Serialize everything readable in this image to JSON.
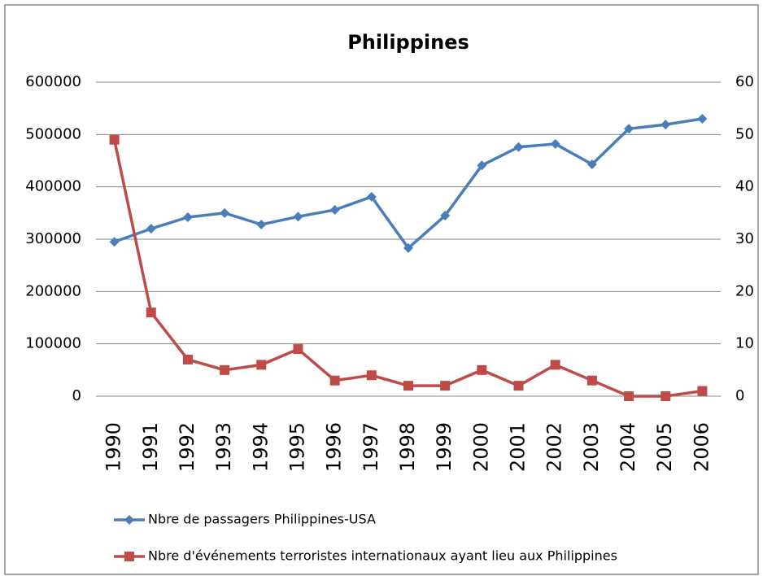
{
  "chart_data": {
    "type": "line",
    "title": "Philippines",
    "categories": [
      "1990",
      "1991",
      "1992",
      "1993",
      "1994",
      "1995",
      "1996",
      "1997",
      "1998",
      "1999",
      "2000",
      "2001",
      "2002",
      "2003",
      "2004",
      "2005",
      "2006"
    ],
    "series": [
      {
        "name": "Nbre de passagers Philippines-USA",
        "color": "#4a7ebb",
        "marker": "diamond",
        "axis": "y",
        "values": [
          295000,
          320000,
          342000,
          350000,
          328000,
          343000,
          356000,
          381000,
          283000,
          345000,
          441000,
          476000,
          482000,
          443000,
          511000,
          519000,
          530000
        ]
      },
      {
        "name": "Nbre d'événements  terroristes internationaux ayant lieu aux Philippines",
        "color": "#be4b48",
        "marker": "square",
        "axis": "y2",
        "values": [
          49,
          16,
          7,
          5,
          6,
          9,
          3,
          4,
          2,
          2,
          5,
          2,
          6,
          3,
          0,
          0,
          1
        ]
      }
    ],
    "ylim": [
      0,
      600000
    ],
    "yticks": [
      0,
      100000,
      200000,
      300000,
      400000,
      500000,
      600000
    ],
    "y2lim": [
      0,
      60
    ],
    "y2ticks": [
      0,
      10,
      20,
      30,
      40,
      50,
      60
    ],
    "grid": true,
    "legend": "bottom"
  }
}
